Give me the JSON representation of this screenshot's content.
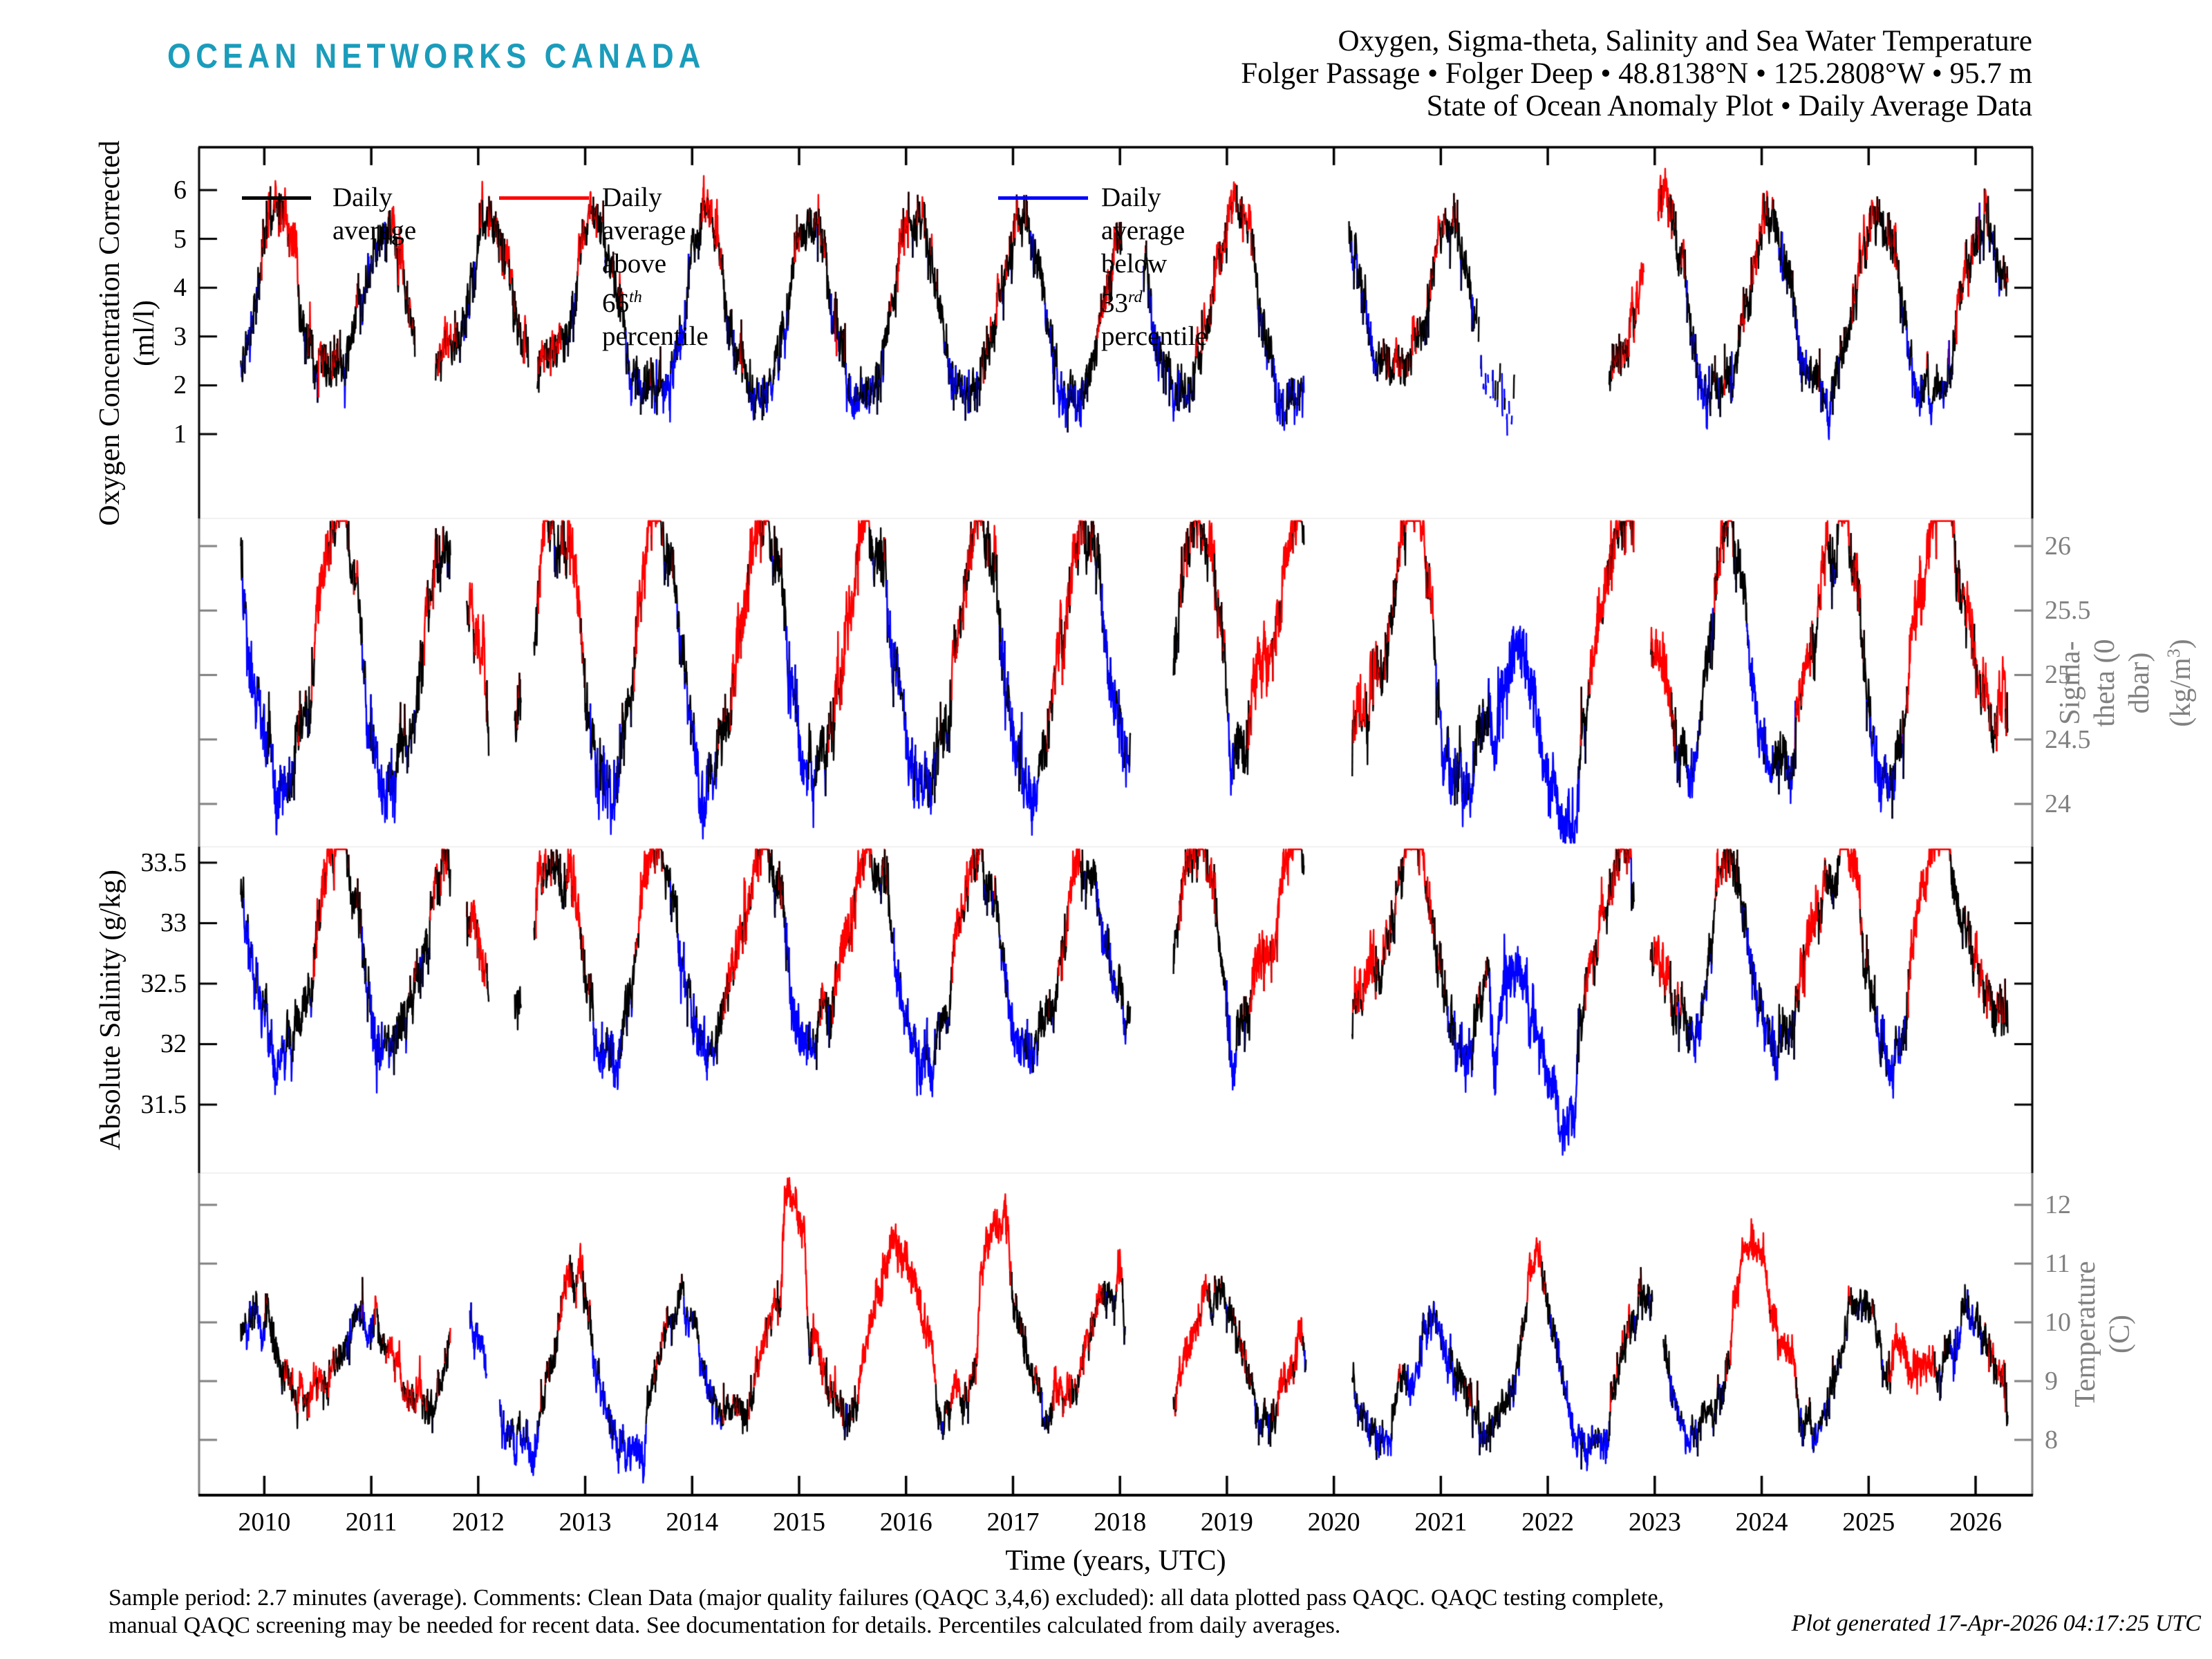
{
  "header": {
    "logo": "OCEAN NETWORKS CANADA",
    "title_line1": "Oxygen, Sigma-theta, Salinity and Sea Water Temperature",
    "title_line2": "Folger Passage • Folger Deep • 48.8138°N • 125.2808°W • 95.7 m",
    "title_line3": "State of Ocean Anomaly Plot • Daily Average Data"
  },
  "legend": {
    "items": [
      {
        "color_key": "daily",
        "parts": [
          {
            "t": "Daily average"
          }
        ]
      },
      {
        "color_key": "above",
        "parts": [
          {
            "t": "Daily average above 66"
          },
          {
            "sup": "th"
          },
          {
            "t": " percentile"
          }
        ]
      },
      {
        "color_key": "below",
        "parts": [
          {
            "t": "Daily average below 33"
          },
          {
            "sup": "rd"
          },
          {
            "t": " percentile"
          }
        ]
      }
    ]
  },
  "colors": {
    "daily": "#000000",
    "above": "#ff0000",
    "below": "#0000ff",
    "axis_black": "#000000",
    "axis_gray": "#808080",
    "logo": "#1b9cbb",
    "panel_divider": "#f0f0f0"
  },
  "x_axis": {
    "label": "Time (years, UTC)",
    "ticks": [
      "2010",
      "2011",
      "2012",
      "2013",
      "2014",
      "2015",
      "2016",
      "2017",
      "2018",
      "2019",
      "2020",
      "2021",
      "2022",
      "2023",
      "2024",
      "2025",
      "2026"
    ],
    "domain": [
      2009.39,
      2026.53
    ]
  },
  "footer": {
    "line1": "Sample period: 2.7 minutes (average). Comments: Clean Data (major quality failures (QAQC 3,4,6) excluded): all data plotted pass QAQC. QAQC testing complete,",
    "line2": "manual QAQC screening may be needed for recent data. See documentation for details. Percentiles calculated from daily averages.",
    "generated": "Plot generated 17-Apr-2026 04:17:25 UTC"
  },
  "chart_data": {
    "type": "line",
    "x_start": 2009.78,
    "x_end": 2026.3,
    "sample_step_days": 1,
    "legend_rule": "black = daily average, red = above 66th percentile climatology, blue = below 33rd percentile climatology",
    "panels": [
      {
        "id": "oxygen",
        "axis_side": "left",
        "axis_color": "#000000",
        "ylabel_lines": [
          [
            {
              "t": "Oxygen Concentration Corrected"
            }
          ],
          [
            {
              "t": "(ml/l)"
            }
          ]
        ],
        "yticks": [
          {
            "v": 1,
            "label": "1"
          },
          {
            "v": 2,
            "label": "2"
          },
          {
            "v": 3,
            "label": "3"
          },
          {
            "v": 4,
            "label": "4"
          },
          {
            "v": 5,
            "label": "5"
          },
          {
            "v": 6,
            "label": "6"
          }
        ],
        "ylim": [
          -0.728,
          6.878
        ],
        "seasonal": {
          "base": 3.45,
          "a1": 1.55,
          "p1": 0.1,
          "a2": 0.2,
          "p2": 0.1
        },
        "noise": {
          "rho": 0.9,
          "sigma_ar": 0.096,
          "sigma_white": 0.21
        },
        "threshold": 0.42,
        "seed": 11,
        "anomalies": [
          [
            2009.78,
            2009.95,
            -0.3
          ],
          [
            2010.0,
            2010.35,
            0.45
          ],
          [
            2010.5,
            2010.75,
            0.35
          ],
          [
            2010.85,
            2011.1,
            -0.4
          ],
          [
            2011.1,
            2011.41,
            0.3
          ],
          [
            2011.6,
            2011.9,
            0.35
          ],
          [
            2012.0,
            2012.47,
            0.45
          ],
          [
            2012.55,
            2012.8,
            0.5
          ],
          [
            2012.9,
            2013.2,
            0.45
          ],
          [
            2013.35,
            2013.6,
            -0.35
          ],
          [
            2013.7,
            2014.0,
            -0.5
          ],
          [
            2014.05,
            2014.35,
            0.35
          ],
          [
            2014.5,
            2014.85,
            -0.45
          ],
          [
            2014.95,
            2015.3,
            0.3
          ],
          [
            2015.4,
            2015.8,
            -0.45
          ],
          [
            2015.9,
            2016.25,
            0.4
          ],
          [
            2016.35,
            2016.7,
            -0.45
          ],
          [
            2016.8,
            2017.2,
            0.45
          ],
          [
            2017.3,
            2017.7,
            -0.4
          ],
          [
            2017.8,
            2018.02,
            0.3
          ],
          [
            2018.25,
            2018.7,
            -0.35
          ],
          [
            2018.8,
            2019.3,
            0.45
          ],
          [
            2019.4,
            2019.72,
            -0.45
          ],
          [
            2020.14,
            2020.45,
            -0.35
          ],
          [
            2020.5,
            2020.85,
            0.3
          ],
          [
            2020.9,
            2021.33,
            0.25
          ],
          [
            2021.33,
            2021.7,
            -0.5
          ],
          [
            2022.57,
            2022.9,
            0.4
          ],
          [
            2022.96,
            2023.25,
            0.5
          ],
          [
            2023.3,
            2023.65,
            -0.4
          ],
          [
            2023.75,
            2024.2,
            0.35
          ],
          [
            2024.3,
            2024.7,
            -0.45
          ],
          [
            2024.8,
            2025.3,
            0.4
          ],
          [
            2025.35,
            2025.75,
            -0.4
          ],
          [
            2025.85,
            2026.15,
            0.35
          ],
          [
            2026.15,
            2026.3,
            -0.45
          ]
        ],
        "gaps": [
          [
            2011.41,
            2011.6
          ],
          [
            2012.47,
            2012.55
          ],
          [
            2018.02,
            2018.22
          ],
          [
            2019.72,
            2020.14
          ],
          [
            2021.7,
            2022.57
          ],
          [
            2022.9,
            2023.03
          ]
        ],
        "sparse": [
          [
            2021.33,
            2021.7
          ]
        ]
      },
      {
        "id": "sigma-theta",
        "axis_side": "right",
        "axis_color": "#808080",
        "ylabel_lines": [
          [
            {
              "t": "Sigma-theta (0 dbar) (kg/m"
            },
            {
              "sup": "3"
            },
            {
              "t": ")"
            }
          ]
        ],
        "yticks": [
          {
            "v": 24,
            "label": "24"
          },
          {
            "v": 24.5,
            "label": "24.5"
          },
          {
            "v": 25,
            "label": "25"
          },
          {
            "v": 25.5,
            "label": "25.5"
          },
          {
            "v": 26,
            "label": "26"
          }
        ],
        "ylim": [
          23.668,
          26.214
        ],
        "seasonal": {
          "base": 25.1,
          "a1": 0.78,
          "p1": 0.72,
          "a2": 0.1,
          "p2": 0.72
        },
        "noise": {
          "rho": 0.9,
          "sigma_ar": 0.048,
          "sigma_white": 0.1
        },
        "threshold": 0.21,
        "seed": 22,
        "anomalies": [
          [
            2009.78,
            2009.95,
            -0.4
          ],
          [
            2009.95,
            2010.3,
            -0.35
          ],
          [
            2010.45,
            2010.8,
            0.4
          ],
          [
            2010.9,
            2011.25,
            -0.35
          ],
          [
            2011.45,
            2011.74,
            0.2
          ],
          [
            2011.89,
            2012.1,
            0.35
          ],
          [
            2012.52,
            2012.75,
            0.3
          ],
          [
            2012.8,
            2013.0,
            0.45
          ],
          [
            2013.05,
            2013.35,
            -0.3
          ],
          [
            2013.45,
            2013.75,
            0.45
          ],
          [
            2013.85,
            2014.25,
            -0.35
          ],
          [
            2014.35,
            2014.75,
            0.4
          ],
          [
            2014.85,
            2015.2,
            -0.35
          ],
          [
            2015.3,
            2015.7,
            0.45
          ],
          [
            2015.8,
            2016.3,
            -0.35
          ],
          [
            2016.4,
            2016.75,
            0.35
          ],
          [
            2016.85,
            2017.25,
            -0.35
          ],
          [
            2017.35,
            2017.7,
            0.3
          ],
          [
            2017.8,
            2018.1,
            -0.3
          ],
          [
            2018.55,
            2018.95,
            0.3
          ],
          [
            2018.98,
            2019.1,
            -0.5
          ],
          [
            2019.2,
            2019.72,
            0.5
          ],
          [
            2020.17,
            2020.45,
            0.35
          ],
          [
            2020.55,
            2020.95,
            0.3
          ],
          [
            2021.0,
            2021.35,
            -0.3
          ],
          [
            2021.45,
            2022.3,
            -0.65
          ],
          [
            2022.35,
            2022.8,
            0.3
          ],
          [
            2022.96,
            2023.2,
            0.4
          ],
          [
            2023.25,
            2023.5,
            -0.25
          ],
          [
            2023.55,
            2023.75,
            0.35
          ],
          [
            2023.85,
            2024.2,
            -0.3
          ],
          [
            2024.3,
            2024.65,
            0.3
          ],
          [
            2024.7,
            2024.95,
            0.45
          ],
          [
            2025.0,
            2025.3,
            -0.25
          ],
          [
            2025.35,
            2025.8,
            0.55
          ],
          [
            2025.9,
            2026.3,
            0.25
          ]
        ],
        "gaps": [
          [
            2011.74,
            2011.89
          ],
          [
            2012.1,
            2012.34
          ],
          [
            2012.4,
            2012.52
          ],
          [
            2018.1,
            2018.5
          ],
          [
            2019.72,
            2020.17
          ],
          [
            2022.81,
            2022.96
          ]
        ],
        "sparse": []
      },
      {
        "id": "salinity",
        "axis_side": "left",
        "axis_color": "#000000",
        "ylabel_lines": [
          [
            {
              "t": "Absolute Salinity (g/kg)"
            }
          ]
        ],
        "yticks": [
          {
            "v": 31.5,
            "label": "31.5"
          },
          {
            "v": 32,
            "label": "32"
          },
          {
            "v": 32.5,
            "label": "32.5"
          },
          {
            "v": 33,
            "label": "33"
          },
          {
            "v": 33.5,
            "label": "33.5"
          }
        ],
        "ylim": [
          30.934,
          33.631
        ],
        "seasonal": {
          "base": 32.7,
          "a1": 0.62,
          "p1": 0.72,
          "a2": 0.08,
          "p2": 0.72
        },
        "noise": {
          "rho": 0.9,
          "sigma_ar": 0.044,
          "sigma_white": 0.09
        },
        "threshold": 0.19,
        "seed": 33,
        "anomalies": [
          [
            2009.78,
            2010.3,
            -0.3
          ],
          [
            2010.45,
            2010.8,
            0.35
          ],
          [
            2010.9,
            2011.25,
            -0.3
          ],
          [
            2011.45,
            2011.74,
            0.18
          ],
          [
            2011.89,
            2012.1,
            0.3
          ],
          [
            2012.52,
            2012.75,
            0.25
          ],
          [
            2012.8,
            2013.0,
            0.4
          ],
          [
            2013.05,
            2013.35,
            -0.25
          ],
          [
            2013.45,
            2013.75,
            0.4
          ],
          [
            2013.85,
            2014.25,
            -0.3
          ],
          [
            2014.35,
            2014.75,
            0.35
          ],
          [
            2014.85,
            2015.2,
            -0.3
          ],
          [
            2015.3,
            2015.7,
            0.4
          ],
          [
            2015.8,
            2016.3,
            -0.3
          ],
          [
            2016.4,
            2016.75,
            0.3
          ],
          [
            2016.85,
            2017.25,
            -0.3
          ],
          [
            2017.35,
            2017.7,
            0.25
          ],
          [
            2017.8,
            2018.1,
            -0.25
          ],
          [
            2018.55,
            2018.95,
            0.25
          ],
          [
            2018.98,
            2019.1,
            -0.6
          ],
          [
            2019.2,
            2019.72,
            0.45
          ],
          [
            2020.17,
            2020.45,
            0.3
          ],
          [
            2020.55,
            2020.95,
            0.25
          ],
          [
            2021.0,
            2021.35,
            -0.25
          ],
          [
            2021.45,
            2022.3,
            -0.8
          ],
          [
            2022.35,
            2022.8,
            0.25
          ],
          [
            2022.96,
            2023.2,
            0.35
          ],
          [
            2023.25,
            2023.5,
            -0.2
          ],
          [
            2023.55,
            2023.75,
            0.3
          ],
          [
            2023.85,
            2024.2,
            -0.25
          ],
          [
            2024.3,
            2024.65,
            0.25
          ],
          [
            2024.7,
            2024.95,
            0.4
          ],
          [
            2025.0,
            2025.3,
            -0.2
          ],
          [
            2025.35,
            2025.8,
            0.5
          ],
          [
            2025.9,
            2026.3,
            0.2
          ]
        ],
        "gaps": [
          [
            2011.74,
            2011.89
          ],
          [
            2012.1,
            2012.34
          ],
          [
            2012.4,
            2012.52
          ],
          [
            2018.1,
            2018.5
          ],
          [
            2019.72,
            2020.17
          ],
          [
            2022.81,
            2022.96
          ]
        ],
        "sparse": []
      },
      {
        "id": "temperature",
        "axis_side": "right",
        "axis_color": "#808080",
        "ylabel_lines": [
          [
            {
              "t": "Temperature (C)"
            }
          ]
        ],
        "yticks": [
          {
            "v": 8,
            "label": "8"
          },
          {
            "v": 9,
            "label": "9"
          },
          {
            "v": 10,
            "label": "10"
          },
          {
            "v": 11,
            "label": "11"
          },
          {
            "v": 12,
            "label": "12"
          }
        ],
        "ylim": [
          7.059,
          12.541
        ],
        "seasonal": {
          "base": 9.25,
          "a1": 1.05,
          "p1": 0.92,
          "a2": 0.15,
          "p2": 0.92
        },
        "noise": {
          "rho": 0.9,
          "sigma_ar": 0.07,
          "sigma_white": 0.13
        },
        "threshold": 0.3,
        "seed": 44,
        "anomalies": [
          [
            2009.78,
            2010.05,
            -0.35
          ],
          [
            2010.3,
            2010.6,
            0.45
          ],
          [
            2010.7,
            2011.0,
            -0.3
          ],
          [
            2011.1,
            2011.5,
            0.4
          ],
          [
            2011.9,
            2012.6,
            -0.5
          ],
          [
            2012.75,
            2013.0,
            0.35
          ],
          [
            2013.05,
            2013.6,
            -0.5
          ],
          [
            2013.9,
            2014.3,
            -0.3
          ],
          [
            2014.5,
            2014.82,
            0.5
          ],
          [
            2014.82,
            2015.1,
            1.6
          ],
          [
            2015.1,
            2015.35,
            0.45
          ],
          [
            2015.55,
            2016.3,
            0.85
          ],
          [
            2016.4,
            2016.6,
            0.3
          ],
          [
            2016.65,
            2017.0,
            1.5
          ],
          [
            2017.05,
            2017.3,
            0.2
          ],
          [
            2017.35,
            2017.6,
            0.45
          ],
          [
            2017.6,
            2017.9,
            0.3
          ],
          [
            2017.95,
            2018.05,
            0.6
          ],
          [
            2018.5,
            2018.85,
            0.45
          ],
          [
            2019.0,
            2019.3,
            0.25
          ],
          [
            2019.45,
            2019.74,
            0.6
          ],
          [
            2020.17,
            2020.55,
            -0.35
          ],
          [
            2020.65,
            2021.1,
            -0.45
          ],
          [
            2021.35,
            2021.6,
            -0.25
          ],
          [
            2021.8,
            2022.0,
            0.7
          ],
          [
            2022.1,
            2022.6,
            -0.5
          ],
          [
            2023.1,
            2023.45,
            -0.35
          ],
          [
            2023.7,
            2024.35,
            0.8
          ],
          [
            2024.45,
            2024.8,
            -0.3
          ],
          [
            2025.2,
            2025.65,
            0.9
          ],
          [
            2025.75,
            2026.05,
            -0.25
          ],
          [
            2026.05,
            2026.3,
            0.2
          ]
        ],
        "gaps": [
          [
            2011.74,
            2011.92
          ],
          [
            2012.08,
            2012.2
          ],
          [
            2018.05,
            2018.5
          ],
          [
            2019.74,
            2020.17
          ],
          [
            2022.98,
            2023.08
          ]
        ],
        "sparse": []
      }
    ]
  }
}
